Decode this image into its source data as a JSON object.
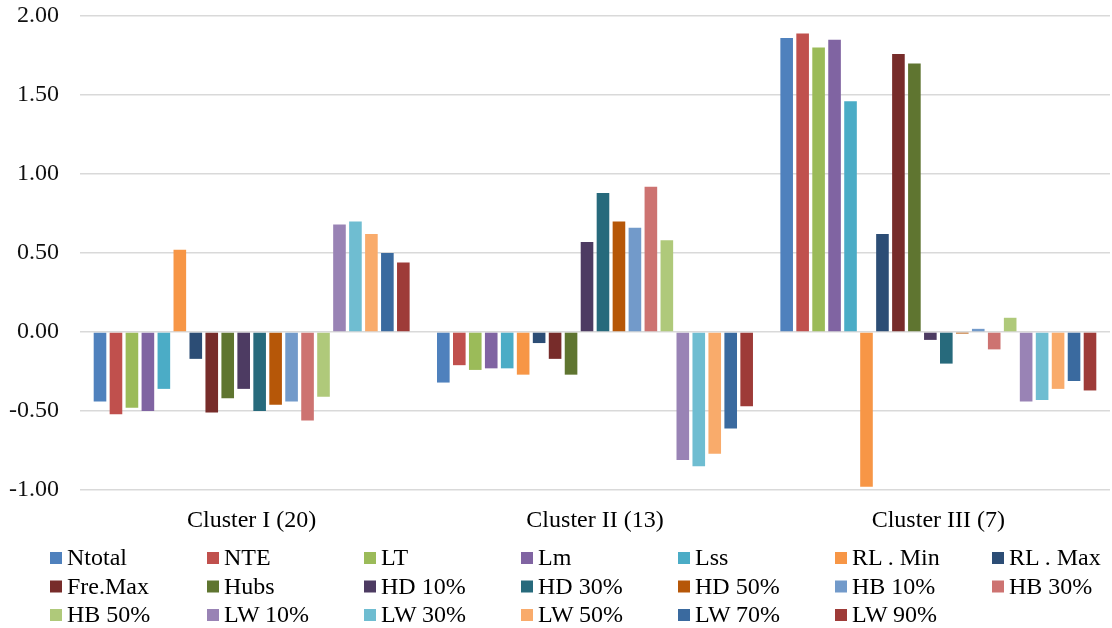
{
  "chart_data": {
    "type": "bar",
    "categories": [
      "Cluster I (20)",
      "Cluster II (13)",
      "Cluster III (7)"
    ],
    "series": [
      {
        "name": "Ntotal",
        "color": "#4f81bd",
        "values": [
          -0.44,
          -0.32,
          1.86
        ]
      },
      {
        "name": "NTE",
        "color": "#c0504d",
        "values": [
          -0.52,
          -0.21,
          1.89
        ]
      },
      {
        "name": "LT",
        "color": "#9bbb59",
        "values": [
          -0.48,
          -0.24,
          1.8
        ]
      },
      {
        "name": "Lm",
        "color": "#8064a2",
        "values": [
          -0.5,
          -0.23,
          1.85
        ]
      },
      {
        "name": "Lss",
        "color": "#4bacc6",
        "values": [
          -0.36,
          -0.23,
          1.46
        ]
      },
      {
        "name": "RL . Min",
        "color": "#f79646",
        "values": [
          0.52,
          -0.27,
          -0.98
        ]
      },
      {
        "name": "RL . Max",
        "color": "#2c4d75",
        "values": [
          -0.17,
          -0.07,
          0.62
        ]
      },
      {
        "name": "Fre.Max",
        "color": "#772c2a",
        "values": [
          -0.51,
          -0.17,
          1.76
        ]
      },
      {
        "name": "Hubs",
        "color": "#5f7530",
        "values": [
          -0.42,
          -0.27,
          1.7
        ]
      },
      {
        "name": "HD 10%",
        "color": "#4d3b62",
        "values": [
          -0.36,
          0.57,
          -0.05
        ]
      },
      {
        "name": "HD 30%",
        "color": "#276a7c",
        "values": [
          -0.5,
          0.88,
          -0.2
        ]
      },
      {
        "name": "HD 50%",
        "color": "#b65708",
        "values": [
          -0.46,
          0.7,
          -0.01
        ]
      },
      {
        "name": "HB 10%",
        "color": "#729aca",
        "values": [
          -0.44,
          0.66,
          0.02
        ]
      },
      {
        "name": "HB 30%",
        "color": "#cd7371",
        "values": [
          -0.56,
          0.92,
          -0.11
        ]
      },
      {
        "name": "HB 50%",
        "color": "#afc97a",
        "values": [
          -0.41,
          0.58,
          0.09
        ]
      },
      {
        "name": "LW 10%",
        "color": "#9983b5",
        "values": [
          0.68,
          -0.81,
          -0.44
        ]
      },
      {
        "name": "LW 30%",
        "color": "#6fbdd1",
        "values": [
          0.7,
          -0.85,
          -0.43
        ]
      },
      {
        "name": "LW 50%",
        "color": "#f9ab6b",
        "values": [
          0.62,
          -0.77,
          -0.36
        ]
      },
      {
        "name": "LW 70%",
        "color": "#3a6a9f",
        "values": [
          0.5,
          -0.61,
          -0.31
        ]
      },
      {
        "name": "LW 90%",
        "color": "#9e3b38",
        "values": [
          0.44,
          -0.47,
          -0.37
        ]
      }
    ],
    "ylim": [
      -1,
      2
    ],
    "yticks": [
      {
        "value": -1,
        "label": "-1.00"
      },
      {
        "value": -0.5,
        "label": "-0.50"
      },
      {
        "value": 0,
        "label": "0.00"
      },
      {
        "value": 0.5,
        "label": "0.50"
      },
      {
        "value": 1,
        "label": "1.00"
      },
      {
        "value": 1.5,
        "label": "1.50"
      },
      {
        "value": 2,
        "label": "2.00"
      }
    ],
    "grid": "y",
    "legend": "bottom"
  }
}
